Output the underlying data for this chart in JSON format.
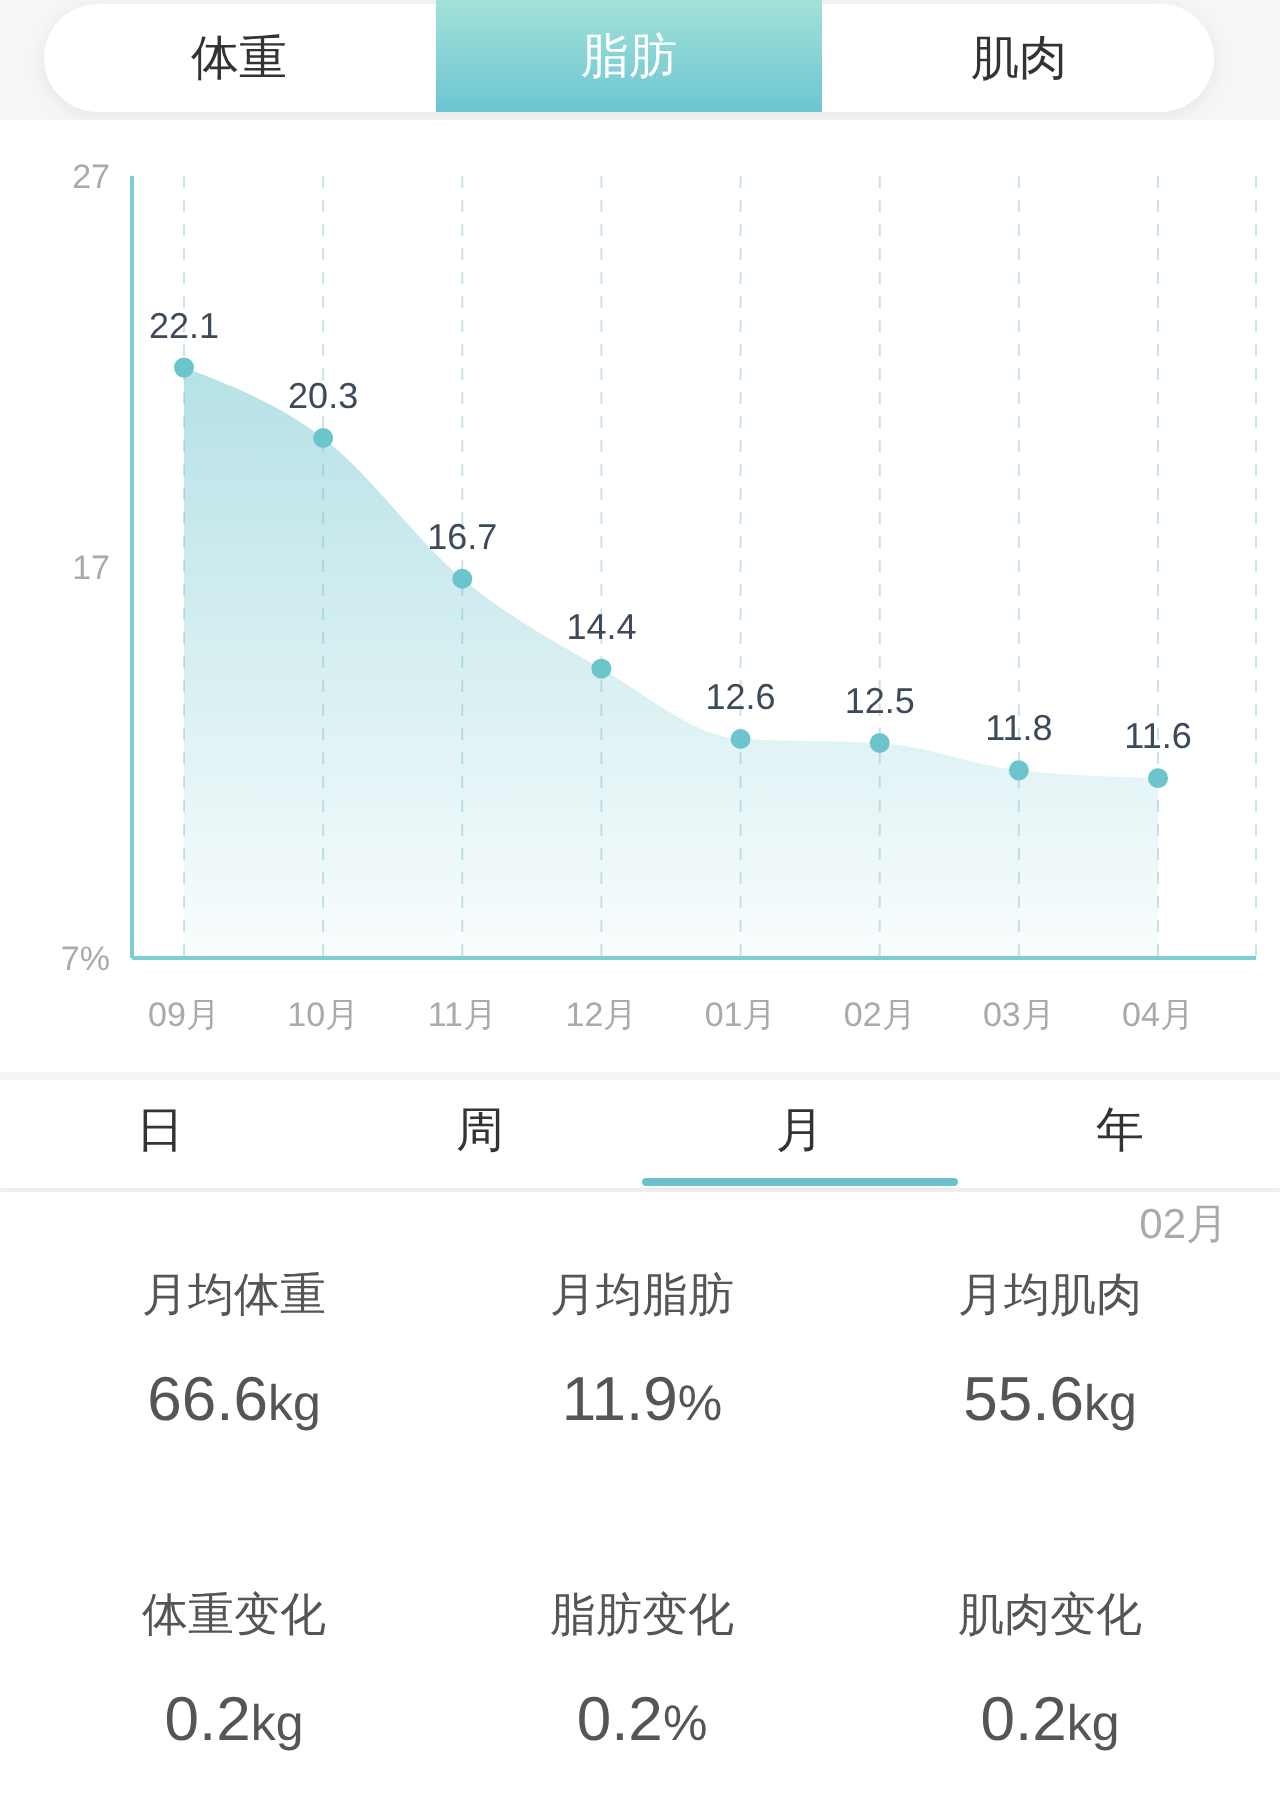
{
  "chart_data": [
    {
      "type": "other",
      "annotations": [
        "体重",
        "脂肪",
        "肌肉"
      ]
    },
    {
      "type": "area",
      "categories": [
        "09月",
        "10月",
        "11月",
        "12月",
        "01月",
        "02月",
        "03月",
        "04月"
      ],
      "values": [
        22.1,
        20.3,
        16.7,
        14.4,
        12.6,
        12.5,
        11.8,
        11.6
      ],
      "color": "#6cc4cd",
      "ylim": [
        7,
        27
      ],
      "yticks": [
        {
          "value": 7,
          "label": "7%"
        },
        17,
        27
      ],
      "grid": "x",
      "marker": "circle",
      "data_labels": true
    },
    {
      "type": "other",
      "annotations": [
        "日",
        "周",
        "月",
        "年"
      ]
    },
    {
      "type": "other",
      "title": "02月",
      "annotations": [
        "月均体重",
        "66.6kg",
        "月均脂肪",
        "11.9%",
        "月均肌肉",
        "55.6kg",
        "体重变化",
        "0.2kg",
        "脂肪变化",
        "0.2%",
        "肌肉变化",
        "0.2kg"
      ]
    }
  ]
}
